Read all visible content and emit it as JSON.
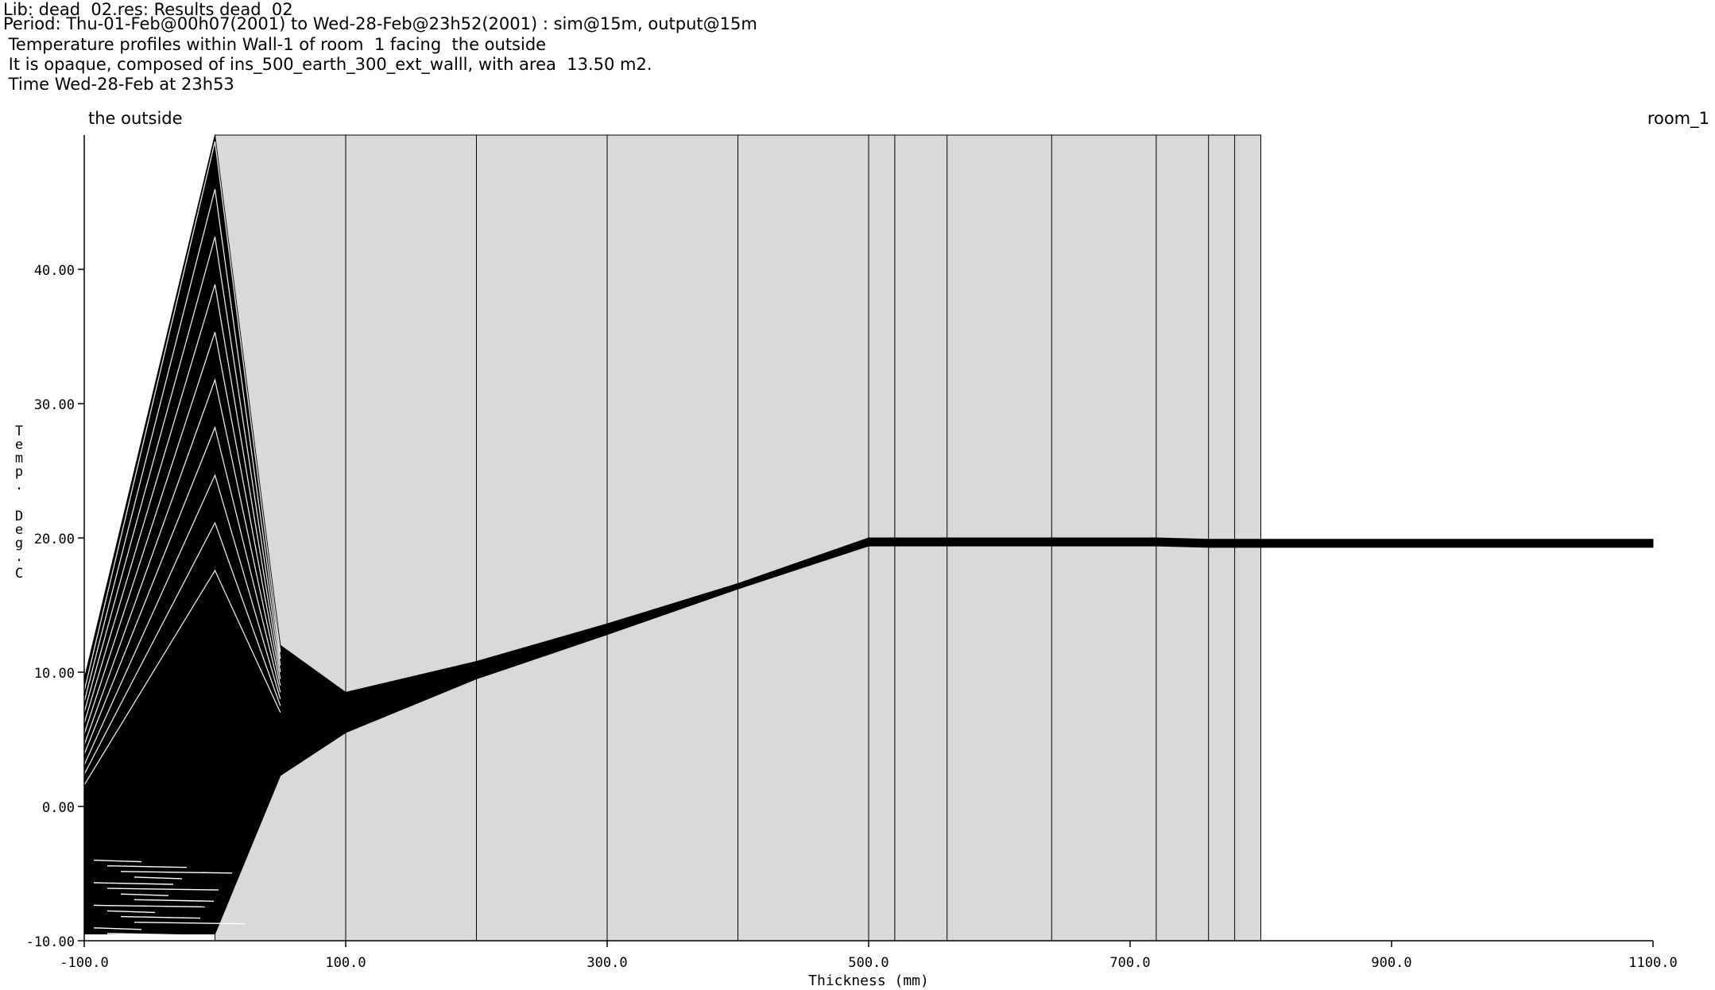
{
  "header": {
    "line1": "Lib: dead  02.res: Results dead  02",
    "line2": "Period: Thu-01-Feb@00h07(2001) to Wed-28-Feb@23h52(2001) : sim@15m, output@15m",
    "line3": " Temperature profiles within Wall-1 of room  1 facing  the outside",
    "line4": " It is opaque, composed of ins_500_earth_300_ext_walll, with area  13.50 m2.",
    "line5": " Time Wed-28-Feb at 23h53"
  },
  "labels": {
    "left_side": "the outside",
    "right_side": "room_1"
  },
  "chart_data": {
    "type": "line",
    "xlabel": "Thickness (mm)",
    "ylabel": "Temp. Deg.C",
    "xlim": [
      -100,
      1100
    ],
    "ylim": [
      -10,
      50
    ],
    "x_ticks": [
      "-100.0",
      "100.0",
      "300.0",
      "500.0",
      "700.0",
      "900.0",
      "1100.0"
    ],
    "y_ticks": [
      "-10.00",
      "0.00",
      "10.00",
      "20.00",
      "30.00",
      "40.00"
    ],
    "wall_extent_mm": [
      0,
      800
    ],
    "layer_boundaries_mm": [
      0,
      100,
      200,
      300,
      400,
      500,
      520,
      560,
      640,
      720,
      760,
      780,
      800
    ],
    "envelope_x_mm": [
      -100,
      0,
      50,
      100,
      200,
      300,
      400,
      500,
      520,
      560,
      640,
      720,
      760,
      780,
      800,
      1100
    ],
    "envelope_upper": [
      9.5,
      50,
      12,
      8.5,
      10.8,
      13.6,
      16.6,
      20.0,
      20.0,
      20.0,
      20.0,
      20.0,
      19.9,
      19.9,
      19.9,
      19.9
    ],
    "envelope_lower": [
      -9.5,
      -9.5,
      2.3,
      5.5,
      9.5,
      12.8,
      16.2,
      19.4,
      19.4,
      19.4,
      19.4,
      19.4,
      19.3,
      19.3,
      19.3,
      19.3
    ],
    "grid": false,
    "colors": {
      "wall_fill": "#d9d9d9",
      "lines": "#000000",
      "background": "#ffffff"
    }
  }
}
